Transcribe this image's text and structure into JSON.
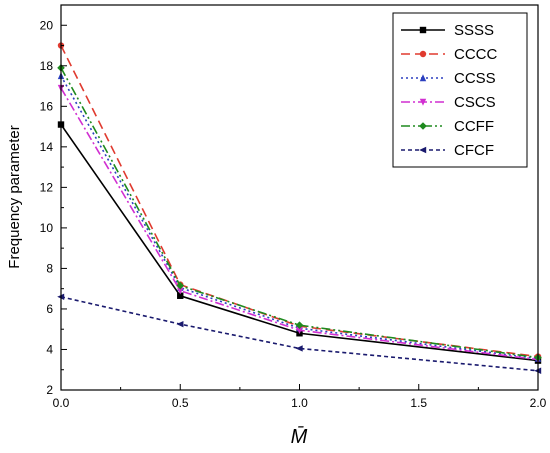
{
  "chart_data": {
    "type": "line",
    "xlabel": "M̄",
    "ylabel": "Frequency parameter",
    "x": [
      0.0,
      0.5,
      1.0,
      1.5,
      2.0
    ],
    "xlim": [
      0.0,
      2.0
    ],
    "ylim": [
      2,
      21
    ],
    "x_ticks": [
      "0.0",
      "0.5",
      "1.0",
      "1.5",
      "2.0"
    ],
    "y_ticks": [
      "2",
      "4",
      "6",
      "8",
      "10",
      "12",
      "14",
      "16",
      "18",
      "20"
    ],
    "legend_position": "top-right",
    "grid": false,
    "series": [
      {
        "name": "SSSS",
        "x": [
          0,
          0.5,
          1.0,
          2.0
        ],
        "values": [
          15.1,
          6.65,
          4.8,
          3.45
        ],
        "color": "#000000",
        "dash": "solid",
        "marker": "square"
      },
      {
        "name": "CCCC",
        "x": [
          0,
          0.5,
          1.0,
          2.0
        ],
        "values": [
          19.0,
          7.2,
          5.15,
          3.65
        ],
        "color": "#e03a2f",
        "dash": "dash",
        "marker": "circle"
      },
      {
        "name": "CCSS",
        "x": [
          0,
          0.5,
          1.0,
          2.0
        ],
        "values": [
          17.5,
          7.05,
          5.05,
          3.55
        ],
        "color": "#2b3fbf",
        "dash": "dot",
        "marker": "triangle-up"
      },
      {
        "name": "CSCS",
        "x": [
          0,
          0.5,
          1.0,
          2.0
        ],
        "values": [
          16.9,
          6.9,
          4.95,
          3.5
        ],
        "color": "#d12fd1",
        "dash": "dashdot",
        "marker": "triangle-down"
      },
      {
        "name": "CCFF",
        "x": [
          0,
          0.5,
          1.0,
          2.0
        ],
        "values": [
          17.9,
          7.15,
          5.2,
          3.6
        ],
        "color": "#1e8a1e",
        "dash": "dashdotdot",
        "marker": "diamond"
      },
      {
        "name": "CFCF",
        "x": [
          0,
          0.5,
          1.0,
          2.0
        ],
        "values": [
          6.6,
          5.25,
          4.05,
          2.95
        ],
        "color": "#1a1a6e",
        "dash": "shortdash",
        "marker": "triangle-left"
      }
    ]
  }
}
